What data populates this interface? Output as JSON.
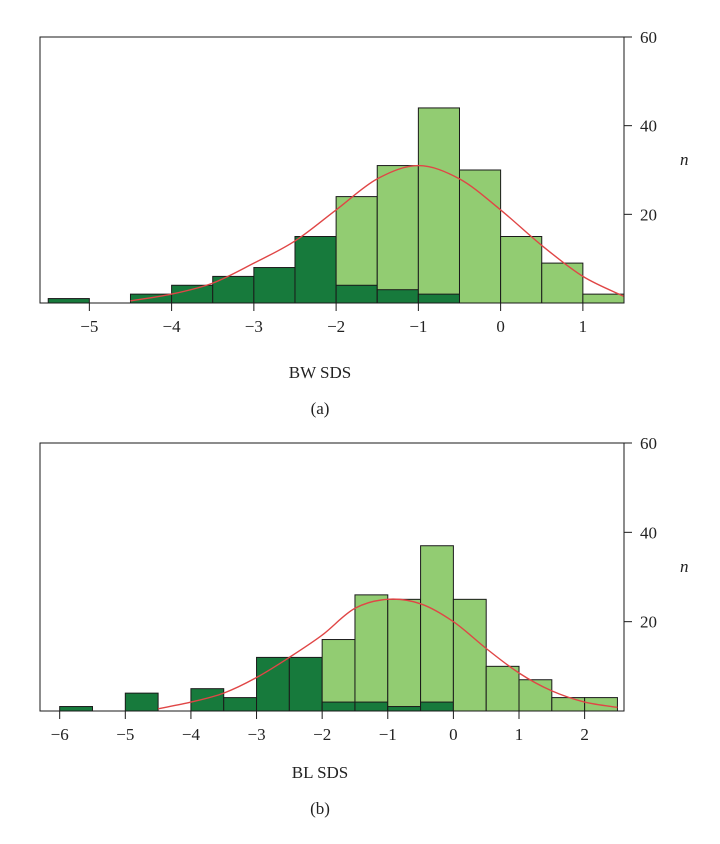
{
  "chart_data": [
    {
      "type": "bar",
      "caption": "(a)",
      "xlabel": "BW SDS",
      "ylabel": "n",
      "xlim": [
        -5.6,
        1.5
      ],
      "ylim": [
        0,
        60
      ],
      "xticks": [
        -5,
        -4,
        -3,
        -2,
        -1,
        0,
        1
      ],
      "yticks": [
        20,
        40,
        60
      ],
      "bin_width": 0.5,
      "bins": [
        {
          "x0": -5.5,
          "light": 0,
          "dark": 1
        },
        {
          "x0": -5.0,
          "light": 0,
          "dark": 0
        },
        {
          "x0": -4.5,
          "light": 0,
          "dark": 2
        },
        {
          "x0": -4.0,
          "light": 0,
          "dark": 4
        },
        {
          "x0": -3.5,
          "light": 0,
          "dark": 6
        },
        {
          "x0": -3.0,
          "light": 0,
          "dark": 8
        },
        {
          "x0": -2.5,
          "light": 0,
          "dark": 15
        },
        {
          "x0": -2.0,
          "light": 20,
          "dark": 4
        },
        {
          "x0": -1.5,
          "light": 28,
          "dark": 3
        },
        {
          "x0": -1.0,
          "light": 42,
          "dark": 2
        },
        {
          "x0": -0.5,
          "light": 30,
          "dark": 0
        },
        {
          "x0": 0.0,
          "light": 15,
          "dark": 0
        },
        {
          "x0": 0.5,
          "light": 9,
          "dark": 0
        },
        {
          "x0": 1.0,
          "light": 2,
          "dark": 0
        }
      ],
      "curve": {
        "x": [
          -4.5,
          -4.0,
          -3.5,
          -3.0,
          -2.5,
          -2.0,
          -1.5,
          -1.0,
          -0.5,
          0.0,
          0.5,
          1.0,
          1.5
        ],
        "y": [
          0.5,
          2,
          4.5,
          9,
          14,
          21,
          28,
          31,
          28,
          21,
          13,
          6,
          1.5
        ]
      },
      "colors": {
        "light": "#92cc72",
        "dark": "#177a3c",
        "curve": "#e04646"
      }
    },
    {
      "type": "bar",
      "caption": "(b)",
      "xlabel": "BL SDS",
      "ylabel": "n",
      "xlim": [
        -6.3,
        2.6
      ],
      "ylim": [
        0,
        60
      ],
      "xticks": [
        -6,
        -5,
        -4,
        -3,
        -2,
        -1,
        0,
        1,
        2
      ],
      "yticks": [
        20,
        40,
        60
      ],
      "bin_width": 0.5,
      "bins": [
        {
          "x0": -6.0,
          "light": 0,
          "dark": 1
        },
        {
          "x0": -5.5,
          "light": 0,
          "dark": 0
        },
        {
          "x0": -5.0,
          "light": 0,
          "dark": 4
        },
        {
          "x0": -4.5,
          "light": 0,
          "dark": 0
        },
        {
          "x0": -4.0,
          "light": 0,
          "dark": 5
        },
        {
          "x0": -3.5,
          "light": 0,
          "dark": 3
        },
        {
          "x0": -3.0,
          "light": 0,
          "dark": 12
        },
        {
          "x0": -2.5,
          "light": 0,
          "dark": 12
        },
        {
          "x0": -2.0,
          "light": 14,
          "dark": 2
        },
        {
          "x0": -1.5,
          "light": 24,
          "dark": 2
        },
        {
          "x0": -1.0,
          "light": 24,
          "dark": 1
        },
        {
          "x0": -0.5,
          "light": 35,
          "dark": 2
        },
        {
          "x0": 0.0,
          "light": 25,
          "dark": 0
        },
        {
          "x0": 0.5,
          "light": 10,
          "dark": 0
        },
        {
          "x0": 1.0,
          "light": 7,
          "dark": 0
        },
        {
          "x0": 1.5,
          "light": 3,
          "dark": 0
        },
        {
          "x0": 2.0,
          "light": 3,
          "dark": 0
        }
      ],
      "curve": {
        "x": [
          -4.5,
          -4.0,
          -3.5,
          -3.0,
          -2.5,
          -2.0,
          -1.5,
          -1.0,
          -0.5,
          0.0,
          0.5,
          1.0,
          1.5,
          2.0,
          2.5
        ],
        "y": [
          0.5,
          2,
          4,
          7.5,
          12,
          17,
          23,
          25,
          24,
          20,
          14,
          8.5,
          4.5,
          2,
          0.8
        ]
      },
      "colors": {
        "light": "#92cc72",
        "dark": "#177a3c",
        "curve": "#e04646"
      }
    }
  ]
}
